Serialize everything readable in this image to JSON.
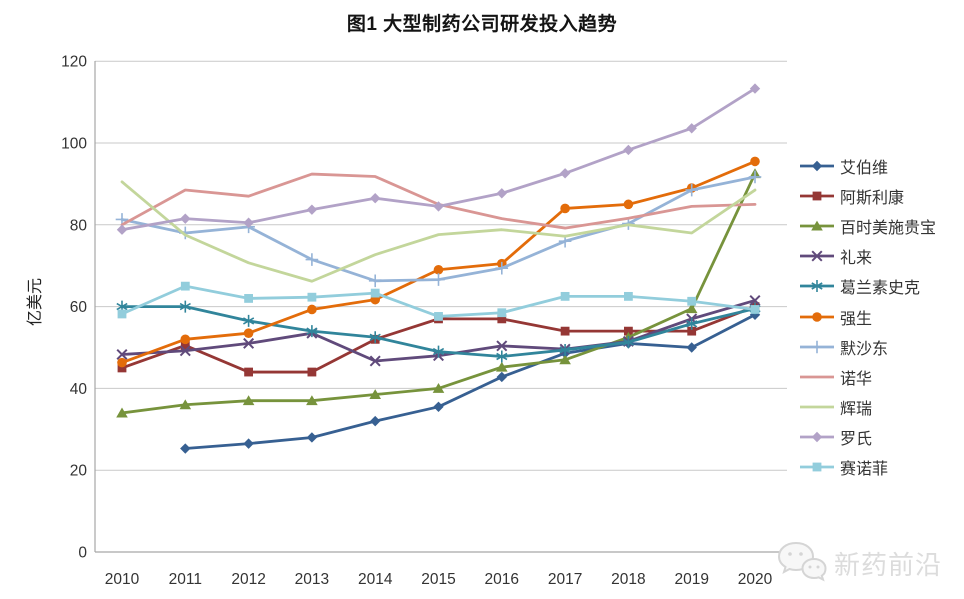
{
  "watermark": {
    "text": "新药前沿",
    "logo": "wechat-chat-bubbles-icon"
  },
  "chart_data": {
    "type": "line",
    "title": "图1 大型制药公司研发投入趋势",
    "ylabel": "亿美元",
    "xlabel": "",
    "ylim": [
      0,
      120
    ],
    "yticks": [
      0,
      20,
      40,
      60,
      80,
      100,
      120
    ],
    "grid": "horizontal",
    "legend_position": "right",
    "categories": [
      "2010",
      "2011",
      "2012",
      "2013",
      "2014",
      "2015",
      "2016",
      "2017",
      "2018",
      "2019",
      "2020"
    ],
    "series": [
      {
        "id": "abbvie",
        "name": "艾伯维",
        "color": "#376092",
        "marker": "diamond",
        "values": [
          null,
          25.3,
          26.5,
          28,
          32,
          35.5,
          42.8,
          48.6,
          51,
          50,
          58
        ]
      },
      {
        "id": "astrazeneca",
        "name": "阿斯利康",
        "color": "#953735",
        "marker": "square",
        "values": [
          45,
          50.5,
          44,
          44,
          52,
          57,
          57,
          54,
          54,
          54,
          60
        ]
      },
      {
        "id": "bms",
        "name": "百时美施贵宝",
        "color": "#77933C",
        "marker": "triangle",
        "values": [
          34,
          36,
          37,
          37,
          38.5,
          40,
          45.2,
          47,
          52.5,
          59.5,
          92.5
        ]
      },
      {
        "id": "lilly",
        "name": "礼来",
        "color": "#604A7B",
        "marker": "x",
        "values": [
          48.3,
          49.2,
          51,
          53.5,
          46.7,
          48,
          50.4,
          49.6,
          51.5,
          57,
          61.5
        ]
      },
      {
        "id": "gsk",
        "name": "葛兰素史克",
        "color": "#31859B",
        "marker": "asterisk",
        "values": [
          60,
          60,
          56.5,
          54,
          52.5,
          49,
          47.8,
          49.4,
          51.3,
          55.8,
          59.5
        ]
      },
      {
        "id": "jnj",
        "name": "强生",
        "color": "#E36C0A",
        "marker": "circle",
        "values": [
          46.3,
          52,
          53.5,
          59.3,
          61.7,
          69,
          70.5,
          84,
          85,
          89,
          95.5
        ]
      },
      {
        "id": "merck",
        "name": "默沙东",
        "color": "#95B3D7",
        "marker": "plus",
        "values": [
          81.3,
          78,
          79.5,
          71.5,
          66.3,
          66.6,
          69.4,
          76,
          80.3,
          88.5,
          91.7
        ]
      },
      {
        "id": "novartis",
        "name": "诺华",
        "color": "#D99694",
        "marker": "none",
        "values": [
          80,
          88.5,
          87,
          92.4,
          91.8,
          85,
          81.5,
          79.2,
          81.6,
          84.5,
          85
        ]
      },
      {
        "id": "pfizer",
        "name": "辉瑞",
        "color": "#C3D69B",
        "marker": "none",
        "values": [
          90.5,
          77.5,
          70.7,
          66.2,
          72.7,
          77.6,
          78.8,
          77.2,
          80,
          78,
          88.5
        ]
      },
      {
        "id": "roche",
        "name": "罗氏",
        "color": "#B2A2C7",
        "marker": "diamond",
        "values": [
          78.8,
          81.5,
          80.5,
          83.7,
          86.5,
          84.5,
          87.7,
          92.6,
          98.3,
          103.6,
          113.3
        ]
      },
      {
        "id": "sanofi",
        "name": "赛诺菲",
        "color": "#92CDDC",
        "marker": "square",
        "values": [
          58.2,
          65,
          62,
          62.3,
          63.3,
          57.6,
          58.5,
          62.5,
          62.5,
          61.3,
          59.3
        ]
      }
    ],
    "colors": {
      "grid": "#C9C9C9",
      "axis": "#A6A6A6",
      "tick_label": "#333333",
      "watermark": "#DCDCDC"
    }
  }
}
